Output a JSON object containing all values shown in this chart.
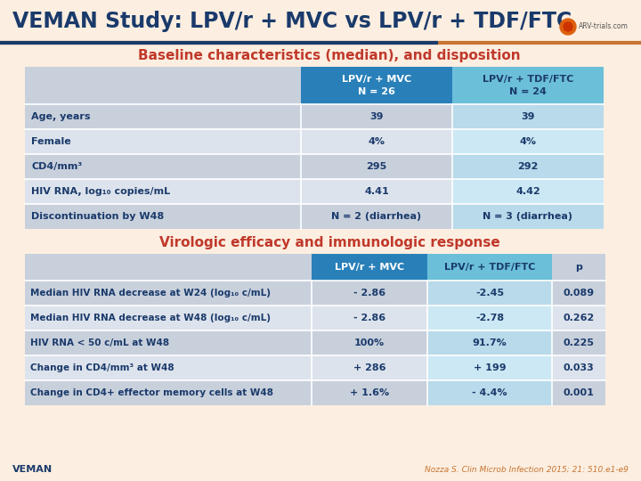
{
  "title": "VEMAN Study: LPV/r + MVC vs LPV/r + TDF/FTC",
  "title_color": "#1a3a6b",
  "bg_color": "#fceee0",
  "subtitle1": "Baseline characteristics (median), and disposition",
  "subtitle1_color": "#c0392b",
  "subtitle2": "Virologic efficacy and immunologic response",
  "subtitle2_color": "#c0392b",
  "table1_col_headers": [
    "LPV/r + MVC\nN = 26",
    "LPV/r + TDF/FTC\nN = 24"
  ],
  "table1_col_header_bg": [
    "#2980b9",
    "#6bbfd9"
  ],
  "table1_col_header_fc": [
    "#ffffff",
    "#1a3a6b"
  ],
  "table1_row_label_col": "#c8d0dc",
  "table1_row_colors": [
    "#c8d0dc",
    "#dde3ec",
    "#c8d0dc",
    "#dde3ec",
    "#c8d0dc"
  ],
  "table1_col2_colors": [
    "#c8d0dc",
    "#dde3ec",
    "#c8d0dc",
    "#dde3ec",
    "#c8d0dc"
  ],
  "table1_col3_colors": [
    "#b8daea",
    "#cce8f4",
    "#b8daea",
    "#cce8f4",
    "#b8daea"
  ],
  "table1_rows": [
    [
      "Age, years",
      "39",
      "39"
    ],
    [
      "Female",
      "4%",
      "4%"
    ],
    [
      "CD4/mm³",
      "295",
      "292"
    ],
    [
      "HIV RNA, log₁₀ copies/mL",
      "4.41",
      "4.42"
    ],
    [
      "Discontinuation by W48",
      "N = 2 (diarrhea)",
      "N = 3 (diarrhea)"
    ]
  ],
  "table2_col_headers": [
    "LPV/r + MVC",
    "LPV/r + TDF/FTC",
    "p"
  ],
  "table2_col_header_bg": [
    "#2980b9",
    "#6bbfd9",
    "#c8d0dc"
  ],
  "table2_col_header_fc": [
    "#ffffff",
    "#1a3a6b",
    "#1a3a6b"
  ],
  "table2_row_colors": [
    "#c8d0dc",
    "#dde3ec",
    "#c8d0dc",
    "#dde3ec",
    "#c8d0dc"
  ],
  "table2_col3_colors": [
    "#b8daea",
    "#cce8f4",
    "#b8daea",
    "#cce8f4",
    "#b8daea"
  ],
  "table2_rows": [
    [
      "Median HIV RNA decrease at W24 (log₁₀ c/mL)",
      "- 2.86",
      "-2.45",
      "0.089"
    ],
    [
      "Median HIV RNA decrease at W48 (log₁₀ c/mL)",
      "- 2.86",
      "-2.78",
      "0.262"
    ],
    [
      "HIV RNA < 50 c/mL at W48",
      "100%",
      "91.7%",
      "0.225"
    ],
    [
      "Change in CD4/mm³ at W48",
      "+ 286",
      "+ 199",
      "0.033"
    ],
    [
      "Change in CD4+ effector memory cells at W48",
      "+ 1.6%",
      "- 4.4%",
      "0.001"
    ]
  ],
  "footer_left": "VEMAN",
  "footer_right": "Nozza S. Clin Microb Infection 2015; 21: 510.e1-e9",
  "text_dark": "#1a3a6b",
  "header_line_blue": "#1a3a6b",
  "header_line_orange": "#c87533",
  "arv_color": "#e07020"
}
